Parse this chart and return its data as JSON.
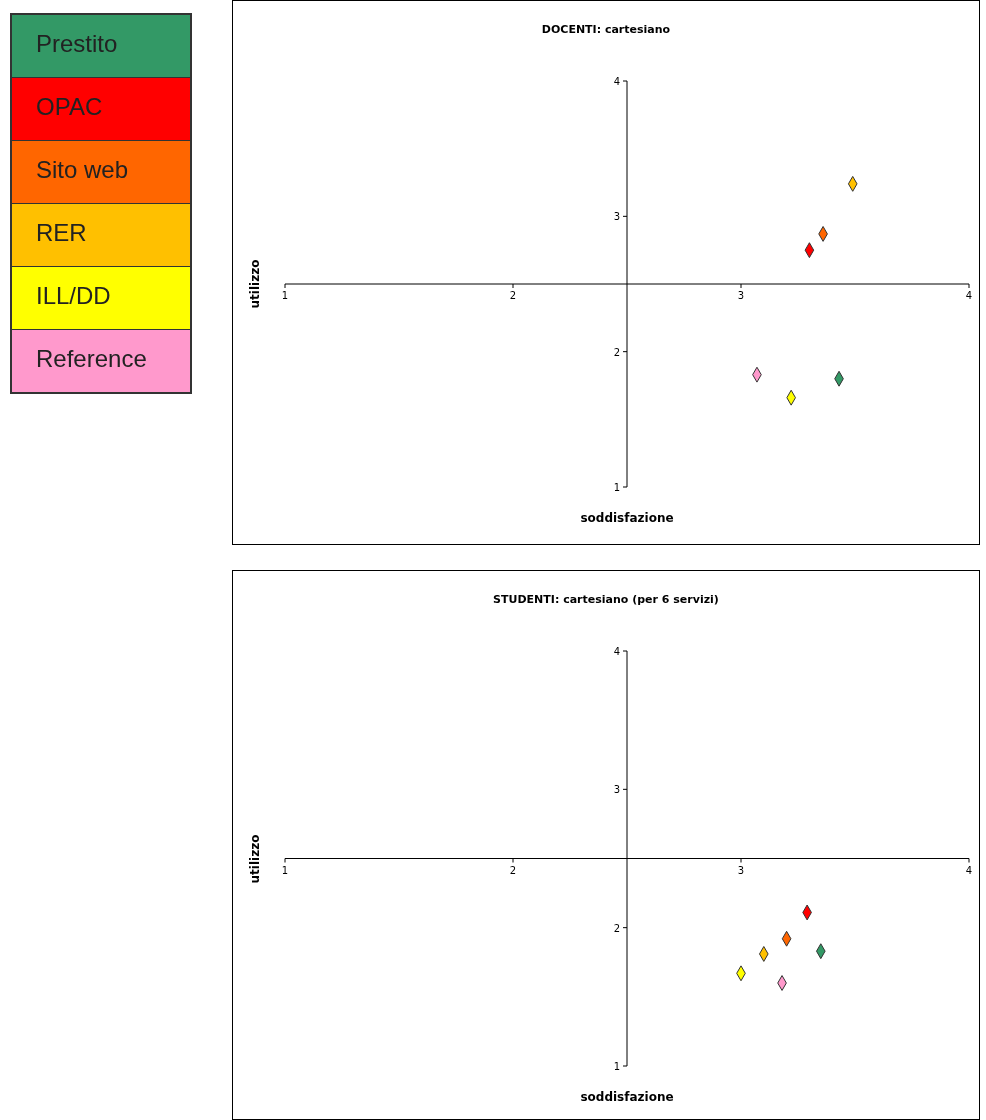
{
  "chart_data": [
    {
      "type": "scatter",
      "title": "DOCENTI: cartesiano",
      "xlabel": "soddisfazione",
      "ylabel": "utilizzo",
      "xlim": [
        1,
        4
      ],
      "ylim": [
        1,
        4
      ],
      "xticks": [
        1,
        2,
        3,
        4
      ],
      "yticks": [
        1,
        2,
        3,
        4
      ],
      "marker": "diamond",
      "legend": "left",
      "series": [
        {
          "name": "Prestito",
          "color": "#339966",
          "x": [
            3.43
          ],
          "values": [
            1.8
          ]
        },
        {
          "name": "OPAC",
          "color": "#ff0000",
          "x": [
            3.3
          ],
          "values": [
            2.75
          ]
        },
        {
          "name": "Sito web",
          "color": "#ff6600",
          "x": [
            3.36
          ],
          "values": [
            2.87
          ]
        },
        {
          "name": "RER",
          "color": "#ffc000",
          "x": [
            3.49
          ],
          "values": [
            3.24
          ]
        },
        {
          "name": "ILL/DD",
          "color": "#ffff00",
          "x": [
            3.22
          ],
          "values": [
            1.66
          ]
        },
        {
          "name": "Reference",
          "color": "#ff99cc",
          "x": [
            3.07
          ],
          "values": [
            1.83
          ]
        }
      ]
    },
    {
      "type": "scatter",
      "title": "STUDENTI: cartesiano (per 6 servizi)",
      "xlabel": "soddisfazione",
      "ylabel": "utilizzo",
      "xlim": [
        1,
        4
      ],
      "ylim": [
        1,
        4
      ],
      "xticks": [
        1,
        2,
        3,
        4
      ],
      "yticks": [
        1,
        2,
        3,
        4
      ],
      "marker": "diamond",
      "series": [
        {
          "color": "#339966",
          "x": [
            3.35
          ],
          "values": [
            1.83
          ]
        },
        {
          "color": "#ff0000",
          "x": [
            3.29
          ],
          "values": [
            2.11
          ]
        },
        {
          "color": "#ff6600",
          "x": [
            3.2
          ],
          "values": [
            1.92
          ]
        },
        {
          "color": "#ffc000",
          "x": [
            3.1
          ],
          "values": [
            1.81
          ]
        },
        {
          "color": "#ffff00",
          "x": [
            3.0
          ],
          "values": [
            1.67
          ]
        },
        {
          "color": "#ff99cc",
          "x": [
            3.18
          ],
          "values": [
            1.6
          ]
        }
      ]
    }
  ]
}
